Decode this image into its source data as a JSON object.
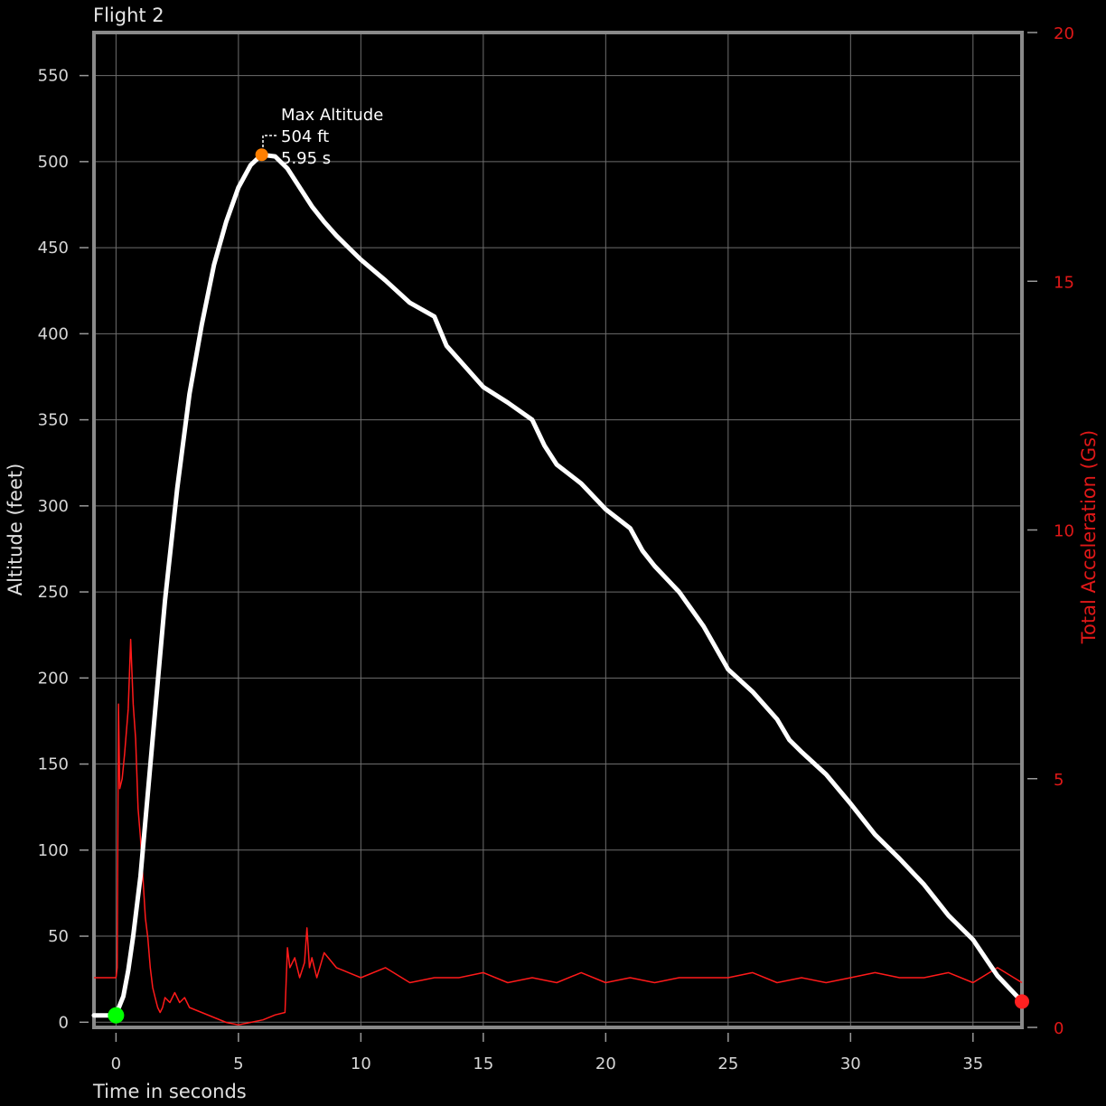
{
  "chart_data": {
    "type": "line",
    "title": "Flight 2",
    "xlabel": "Time in seconds",
    "ylabel": "Altitude (feet)",
    "y2label": "Total Acceleration (Gs)",
    "xlim": [
      -0.9,
      37
    ],
    "ylim": [
      -3,
      575
    ],
    "y2lim": [
      0,
      20
    ],
    "xticks": [
      0,
      5,
      10,
      15,
      20,
      25,
      30,
      35
    ],
    "yticks": [
      0,
      50,
      100,
      150,
      200,
      250,
      300,
      350,
      400,
      450,
      500,
      550
    ],
    "y2ticks": [
      0,
      5,
      10,
      15,
      20
    ],
    "grid": true,
    "colors": {
      "altitude": "#ffffff",
      "acceleration": "#ff1a1a",
      "launch_marker": "#00ff00",
      "apogee_marker": "#ff7f00",
      "landing_marker": "#ff2020",
      "y2_axis": "#e01818"
    },
    "series": [
      {
        "axis": "left",
        "x": [
          -0.9,
          0,
          0.1,
          0.3,
          0.5,
          0.7,
          1,
          1.5,
          2,
          2.5,
          3,
          3.5,
          4,
          4.5,
          5,
          5.5,
          5.95,
          6.5,
          7,
          7.5,
          8,
          8.5,
          9,
          9.5,
          10,
          11,
          12,
          13,
          13.5,
          14,
          15,
          16,
          17,
          17.5,
          18,
          19,
          20,
          21,
          21.5,
          22,
          23,
          24,
          25,
          26,
          27,
          27.5,
          28,
          29,
          30,
          31,
          32,
          33,
          34,
          35,
          36,
          37
        ],
        "values": [
          4,
          4,
          8,
          15,
          30,
          50,
          85,
          165,
          245,
          310,
          365,
          405,
          440,
          465,
          485,
          498,
          504,
          503,
          496,
          485,
          474,
          465,
          457,
          450,
          443,
          431,
          418,
          410,
          393,
          385,
          369,
          360,
          350,
          335,
          324,
          313,
          298,
          287,
          274,
          265,
          250,
          230,
          205,
          192,
          176,
          164,
          157,
          144,
          127,
          109,
          95,
          80,
          62,
          48,
          27,
          12
        ]
      },
      {
        "axis": "right",
        "x": [
          -0.9,
          0,
          0.05,
          0.1,
          0.15,
          0.25,
          0.35,
          0.5,
          0.6,
          0.7,
          0.8,
          0.9,
          1,
          1.1,
          1.2,
          1.3,
          1.4,
          1.5,
          1.6,
          1.7,
          1.8,
          1.9,
          2,
          2.2,
          2.4,
          2.6,
          2.8,
          3,
          3.5,
          4,
          4.5,
          5,
          5.5,
          6,
          6.5,
          6.9,
          7,
          7.1,
          7.3,
          7.5,
          7.7,
          7.8,
          7.9,
          8,
          8.2,
          8.5,
          9,
          9.5,
          10,
          11,
          12,
          13,
          14,
          15,
          16,
          17,
          18,
          19,
          20,
          21,
          22,
          23,
          24,
          25,
          26,
          27,
          28,
          29,
          30,
          31,
          32,
          33,
          34,
          35,
          36,
          37
        ],
        "values": [
          1.0,
          1.0,
          1.2,
          6.5,
          4.8,
          5.0,
          5.5,
          6.4,
          7.8,
          6.5,
          5.8,
          4.4,
          3.8,
          3.0,
          2.2,
          1.8,
          1.2,
          0.8,
          0.6,
          0.4,
          0.3,
          0.4,
          0.6,
          0.5,
          0.7,
          0.5,
          0.6,
          0.4,
          0.3,
          0.2,
          0.1,
          0.05,
          0.1,
          0.15,
          0.25,
          0.3,
          1.6,
          1.2,
          1.4,
          1.0,
          1.3,
          2.0,
          1.2,
          1.4,
          1.0,
          1.5,
          1.2,
          1.1,
          1.0,
          1.2,
          0.9,
          1.0,
          1.0,
          1.1,
          0.9,
          1.0,
          0.9,
          1.1,
          0.9,
          1.0,
          0.9,
          1.0,
          1.0,
          1.0,
          1.1,
          0.9,
          1.0,
          0.9,
          1.0,
          1.1,
          1.0,
          1.0,
          1.1,
          0.9,
          1.2,
          0.9
        ]
      }
    ],
    "markers": [
      {
        "name": "launch",
        "x": 0,
        "y": 4
      },
      {
        "name": "apogee",
        "x": 5.95,
        "y": 504
      },
      {
        "name": "landing",
        "x": 37,
        "y": 12
      }
    ],
    "annotation": {
      "title": "Max Altitude",
      "altitude": "504 ft",
      "time": "5.95  s"
    }
  }
}
